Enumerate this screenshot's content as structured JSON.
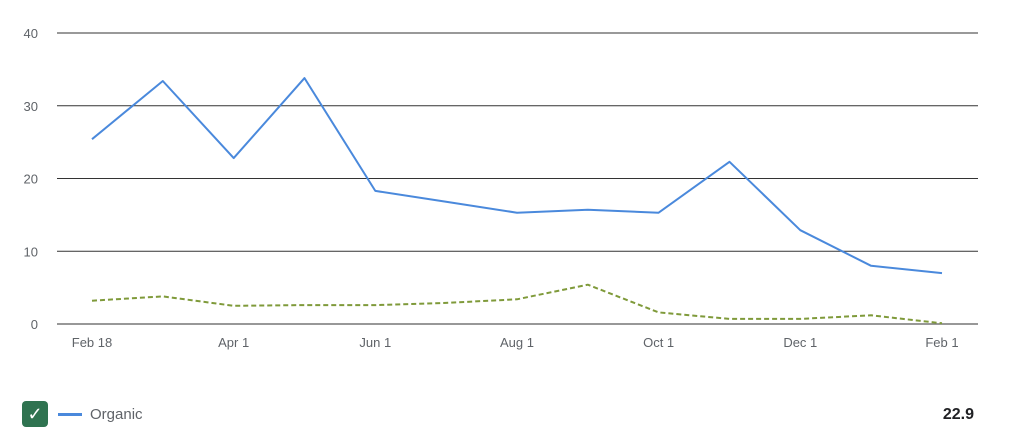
{
  "chart_data": {
    "type": "line",
    "ylim": [
      0,
      40
    ],
    "yticks": [
      "0",
      "10",
      "20",
      "30",
      "40"
    ],
    "xtick_labels": [
      "Feb 18",
      "Apr 1",
      "Jun 1",
      "Aug 1",
      "Oct 1",
      "Dec 1",
      "Feb 1"
    ],
    "grid": true,
    "series": [
      {
        "name": "Organic",
        "color": "#4a89dc",
        "style": "solid",
        "values": [
          25.4,
          33.4,
          22.8,
          33.8,
          18.3,
          16.8,
          15.3,
          15.7,
          15.3,
          22.3,
          12.9,
          8.0,
          7.0
        ]
      },
      {
        "color": "#7f9a3a",
        "style": "dashed",
        "values": [
          3.2,
          3.8,
          2.5,
          2.6,
          2.6,
          2.9,
          3.4,
          5.4,
          1.6,
          0.7,
          0.7,
          1.2,
          0.1
        ]
      }
    ],
    "legend_position": "bottom-left"
  },
  "legend": {
    "label": "Organic",
    "checked": true,
    "check_icon": "checkmark-icon",
    "total": "22.9"
  }
}
